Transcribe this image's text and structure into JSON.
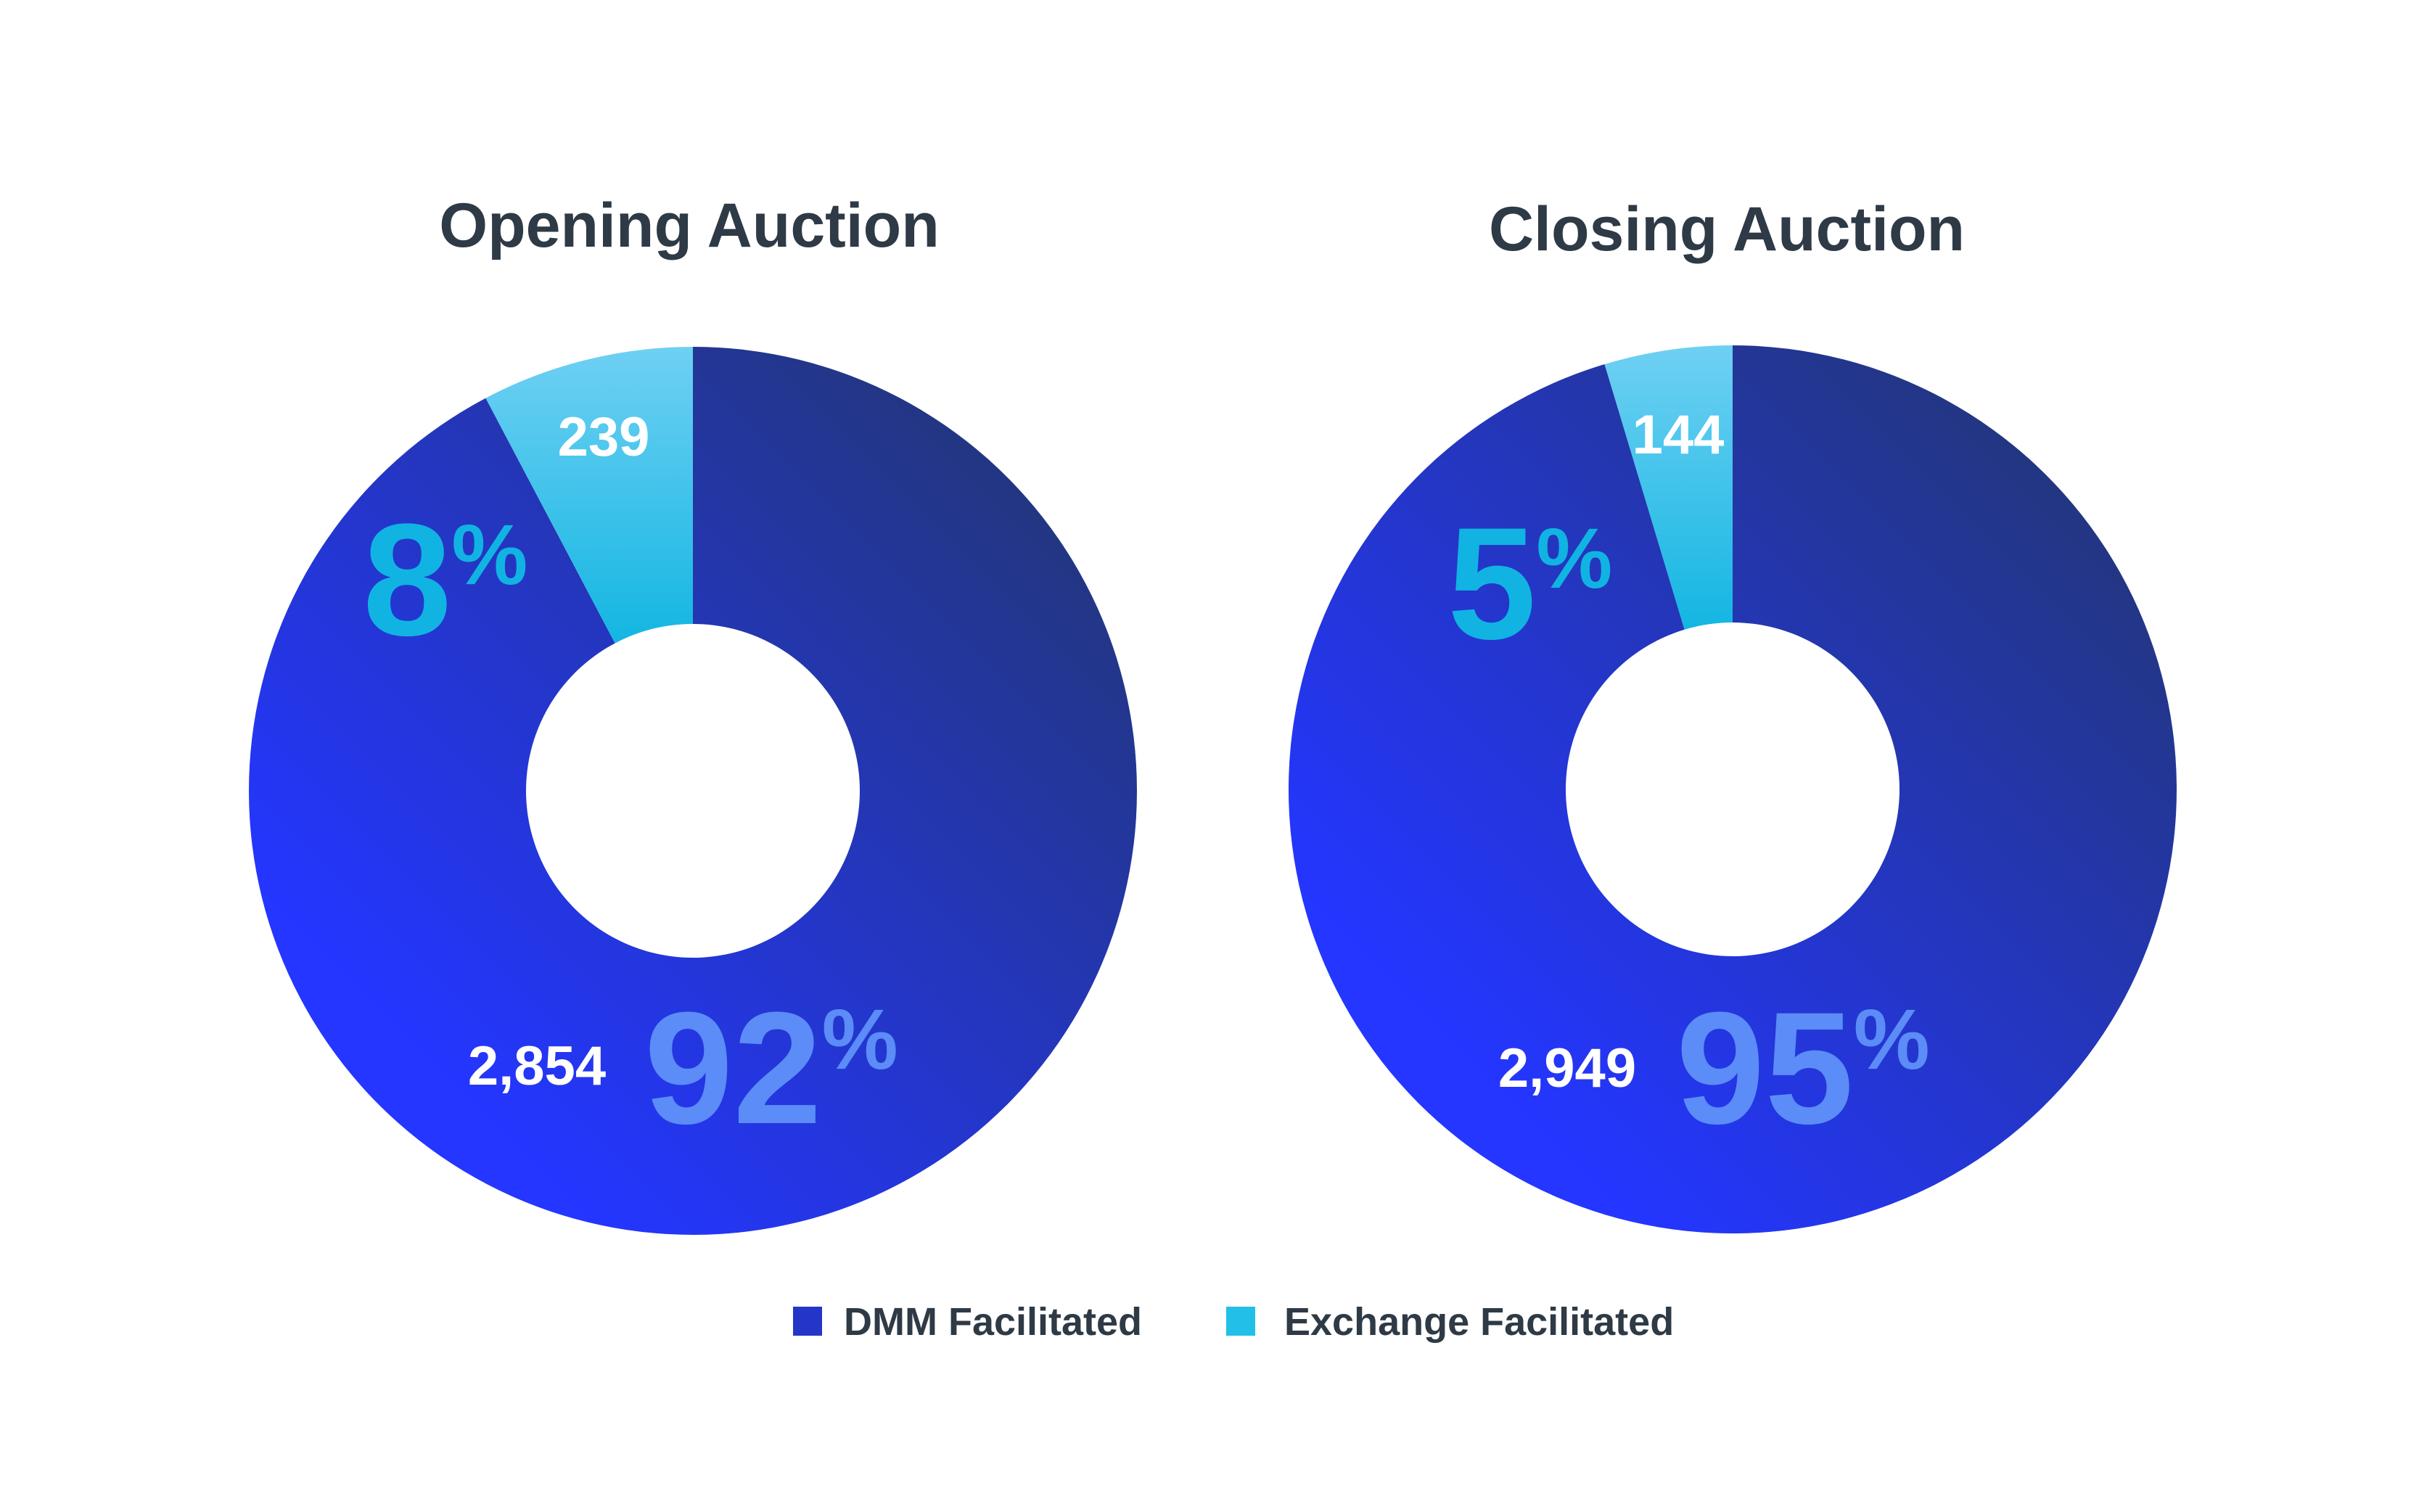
{
  "colors": {
    "dmm_gradient_light": "#2436ff",
    "dmm_gradient_dark": "#233670",
    "exchange_gradient_light": "#6fd0f3",
    "exchange_gradient_dark": "#13b6e2",
    "dmm_percent_text": "#5b8cf7",
    "exchange_percent_text": "#11b3e3",
    "title_text": "#2e3a45",
    "legend_dmm_swatch": "#2436c8",
    "legend_exchange_swatch": "#22c0e8"
  },
  "legend": {
    "items": [
      {
        "label": "DMM Facilitated"
      },
      {
        "label": "Exchange Facilitated"
      }
    ]
  },
  "chart_data": [
    {
      "type": "pie",
      "title": "Opening Auction",
      "slices": [
        {
          "label": "DMM Facilitated",
          "value": 2854,
          "value_label": "2,854",
          "percent": 92,
          "percent_label": "92"
        },
        {
          "label": "Exchange Facilitated",
          "value": 239,
          "value_label": "239",
          "percent": 8,
          "percent_label": "8"
        }
      ],
      "percent_symbol": "%",
      "donut": true
    },
    {
      "type": "pie",
      "title": "Closing Auction",
      "slices": [
        {
          "label": "DMM Facilitated",
          "value": 2949,
          "value_label": "2,949",
          "percent": 95,
          "percent_label": "95"
        },
        {
          "label": "Exchange Facilitated",
          "value": 144,
          "value_label": "144",
          "percent": 5,
          "percent_label": "5"
        }
      ],
      "percent_symbol": "%",
      "donut": true
    }
  ]
}
